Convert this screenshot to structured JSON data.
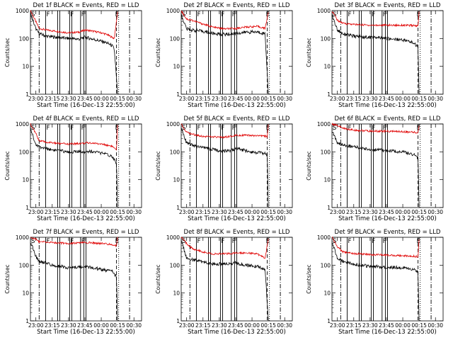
{
  "chart_data": {
    "type": "line",
    "y_scale": "log",
    "ylim": [
      1,
      1000
    ],
    "y_ticks": [
      1,
      10,
      100,
      1000
    ],
    "x_ticks": [
      "23:00",
      "23:15",
      "23:30",
      "23:45",
      "00:00",
      "00:15",
      "00:30"
    ],
    "xlabel": "Start Time (16-Dec-13 22:55:00)",
    "ylabel": "Counts/sec",
    "series_colors": {
      "events": "#000000",
      "lld": "#e00000"
    },
    "markers": {
      "S": "S",
      "F": "F",
      "E": "E"
    },
    "panels": [
      {
        "title": "Det 1f BLACK = Events, RED = LLD",
        "x": [
          "22:55",
          "23:00",
          "23:03",
          "23:10",
          "23:20",
          "23:30",
          "23:40",
          "23:45",
          "23:50",
          "00:00",
          "00:05",
          "00:10",
          "00:12",
          "00:15"
        ],
        "series": [
          {
            "key": "lld",
            "values": [
              1000,
              400,
              230,
              200,
              180,
              160,
              170,
              200,
              190,
              160,
              140,
              110,
              100,
              900
            ]
          },
          {
            "key": "events",
            "values": [
              800,
              220,
              150,
              120,
              110,
              100,
              95,
              110,
              100,
              80,
              70,
              55,
              40,
              1
            ]
          }
        ]
      },
      {
        "title": "Det 2f BLACK = Events, RED = LLD",
        "x": [
          "22:55",
          "23:00",
          "23:05",
          "23:15",
          "23:25",
          "23:35",
          "23:45",
          "23:55",
          "00:05",
          "00:12",
          "00:15"
        ],
        "series": [
          {
            "key": "lld",
            "values": [
              1000,
              500,
              450,
              330,
              250,
              220,
              230,
              260,
              270,
              230,
              900
            ]
          },
          {
            "key": "events",
            "values": [
              700,
              220,
              200,
              180,
              150,
              140,
              150,
              170,
              170,
              150,
              1
            ]
          }
        ]
      },
      {
        "title": "Det 3f BLACK = Events, RED = LLD",
        "x": [
          "22:55",
          "23:00",
          "23:05",
          "23:15",
          "23:30",
          "23:45",
          "00:00",
          "00:10",
          "00:14",
          "00:15"
        ],
        "series": [
          {
            "key": "lld",
            "values": [
              1000,
              450,
              350,
              320,
              300,
              300,
              300,
              290,
              280,
              900
            ]
          },
          {
            "key": "events",
            "values": [
              700,
              200,
              150,
              120,
              110,
              100,
              90,
              70,
              50,
              1
            ]
          }
        ]
      },
      {
        "title": "Det 4f BLACK = Events, RED = LLD",
        "x": [
          "22:55",
          "23:00",
          "23:03",
          "23:10",
          "23:20",
          "23:30",
          "23:40",
          "23:50",
          "00:00",
          "00:10",
          "00:14",
          "00:15"
        ],
        "series": [
          {
            "key": "lld",
            "values": [
              1000,
              450,
              250,
              220,
              200,
              190,
              200,
              210,
              190,
              160,
              110,
              900
            ]
          },
          {
            "key": "events",
            "values": [
              700,
              180,
              150,
              130,
              110,
              100,
              100,
              105,
              90,
              70,
              40,
              1
            ]
          }
        ]
      },
      {
        "title": "Det 5f BLACK = Events, RED = LLD",
        "x": [
          "22:55",
          "23:00",
          "23:05",
          "23:15",
          "23:30",
          "23:40",
          "23:45",
          "00:00",
          "00:10",
          "00:14",
          "00:15"
        ],
        "series": [
          {
            "key": "lld",
            "values": [
              1000,
              500,
              430,
              360,
              330,
              350,
              400,
              380,
              370,
              350,
              1000
            ]
          },
          {
            "key": "events",
            "values": [
              800,
              200,
              170,
              140,
              110,
              110,
              130,
              100,
              90,
              80,
              1
            ]
          }
        ]
      },
      {
        "title": "Det 6f BLACK = Events, RED = LLD",
        "x": [
          "22:55",
          "23:00",
          "23:05",
          "23:15",
          "23:30",
          "23:45",
          "00:00",
          "00:10",
          "00:14",
          "00:15"
        ],
        "series": [
          {
            "key": "lld",
            "values": [
              1000,
              900,
              700,
              600,
              550,
              550,
              530,
              500,
              480,
              900
            ]
          },
          {
            "key": "events",
            "values": [
              600,
              200,
              180,
              150,
              120,
              110,
              100,
              80,
              60,
              1
            ]
          }
        ]
      },
      {
        "title": "Det 7f BLACK = Events, RED = LLD",
        "x": [
          "22:55",
          "23:00",
          "23:03",
          "23:15",
          "23:30",
          "23:45",
          "00:00",
          "00:10",
          "00:14",
          "00:15"
        ],
        "series": [
          {
            "key": "lld",
            "values": [
              1000,
              850,
              700,
              650,
              600,
              650,
              600,
              550,
              500,
              1000
            ]
          },
          {
            "key": "events",
            "values": [
              700,
              200,
              140,
              100,
              80,
              90,
              70,
              60,
              40,
              1
            ]
          }
        ]
      },
      {
        "title": "Det 8f BLACK = Events, RED = LLD",
        "x": [
          "22:55",
          "23:00",
          "23:05",
          "23:15",
          "23:25",
          "23:35",
          "23:45",
          "23:55",
          "00:05",
          "00:12",
          "00:15"
        ],
        "series": [
          {
            "key": "lld",
            "values": [
              1000,
              600,
              400,
              300,
              250,
              260,
              270,
              280,
              250,
              180,
              900
            ]
          },
          {
            "key": "events",
            "values": [
              800,
              180,
              160,
              130,
              110,
              110,
              120,
              100,
              90,
              70,
              1
            ]
          }
        ]
      },
      {
        "title": "Det 9f BLACK = Events, RED = LLD",
        "x": [
          "22:55",
          "23:00",
          "23:05",
          "23:15",
          "23:30",
          "23:45",
          "00:00",
          "00:10",
          "00:14",
          "00:15"
        ],
        "series": [
          {
            "key": "lld",
            "values": [
              1000,
              450,
              300,
              260,
              240,
              230,
              220,
              210,
              200,
              900
            ]
          },
          {
            "key": "events",
            "values": [
              700,
              180,
              140,
              110,
              90,
              85,
              80,
              70,
              55,
              1
            ]
          }
        ]
      }
    ]
  }
}
